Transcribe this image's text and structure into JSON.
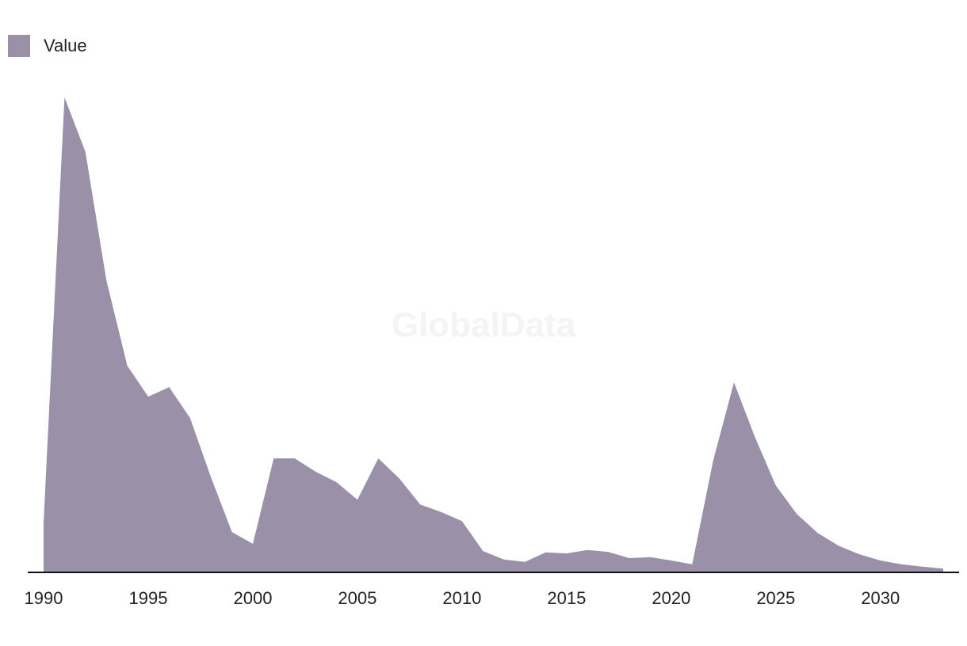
{
  "watermark": "GlobalData",
  "colors": {
    "area": "#9a91a9",
    "axis": "#111111",
    "text": "#222222",
    "watermark": "#f4f3f5"
  },
  "chart_data": {
    "type": "area",
    "title": "",
    "xlabel": "",
    "ylabel": "",
    "legend": {
      "position": "top-left",
      "entries": [
        "Value"
      ]
    },
    "grid": false,
    "x_ticks": [
      1990,
      1995,
      2000,
      2005,
      2010,
      2015,
      2020,
      2025,
      2030
    ],
    "x": [
      1990,
      1991,
      1992,
      1993,
      1994,
      1995,
      1996,
      1997,
      1998,
      1999,
      2000,
      2001,
      2002,
      2003,
      2004,
      2005,
      2006,
      2007,
      2008,
      2009,
      2010,
      2011,
      2012,
      2013,
      2014,
      2015,
      2016,
      2017,
      2018,
      2019,
      2020,
      2021,
      2022,
      2023,
      2024,
      2025,
      2026,
      2027,
      2028,
      2029,
      2030,
      2031,
      2032,
      2033
    ],
    "xlim": [
      1990,
      2033
    ],
    "ylim": [
      0,
      100
    ],
    "series": [
      {
        "name": "Value",
        "color": "#9a91a9",
        "start_value": 10.5,
        "values": [
          10.5,
          100,
          88.5,
          61.5,
          43.5,
          37,
          39,
          32.5,
          20,
          8.5,
          6,
          24,
          24,
          21.2,
          19,
          15.3,
          24,
          19.8,
          14.3,
          12.7,
          10.8,
          4.5,
          2.7,
          2.2,
          4.2,
          4,
          4.7,
          4.3,
          3,
          3.2,
          2.5,
          1.7,
          23.5,
          40,
          28.5,
          18.3,
          12.3,
          8.3,
          5.6,
          3.8,
          2.5,
          1.7,
          1.2,
          0.8
        ]
      }
    ]
  }
}
